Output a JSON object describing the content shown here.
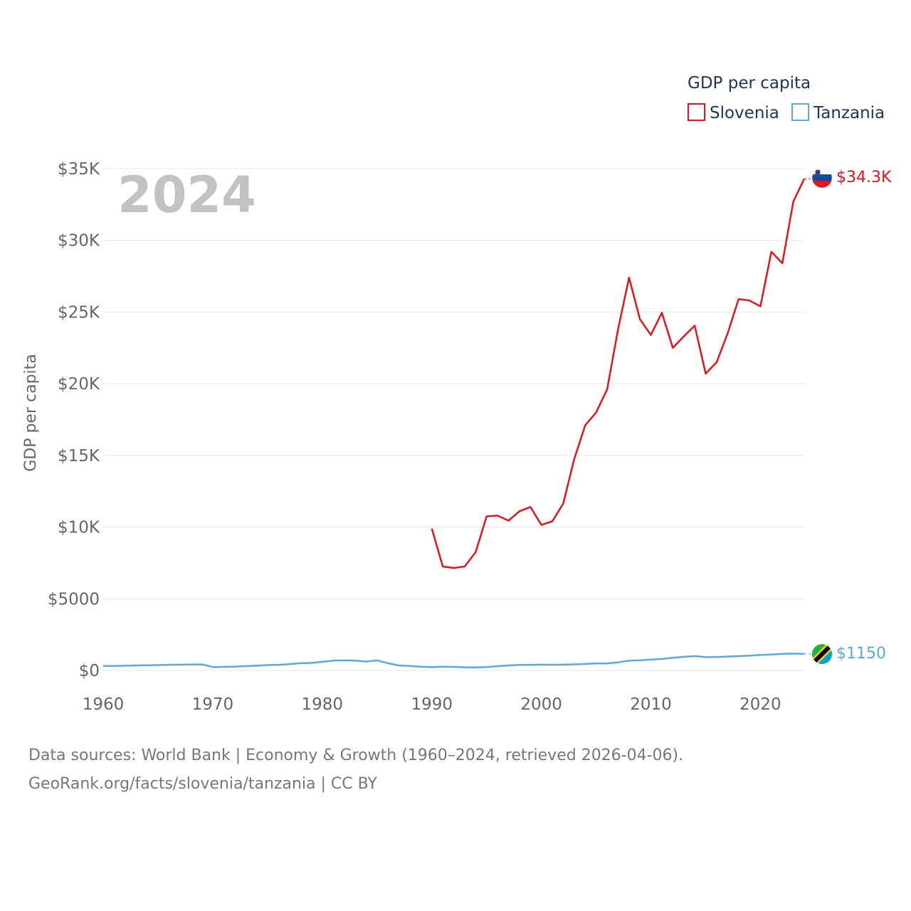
{
  "footer": {
    "line1": "Data sources: World Bank | Economy & Growth (1960–2024, retrieved 2026-04-06).",
    "line2": "GeoRank.org/facts/slovenia/tanzania | CC BY"
  },
  "chart_data": {
    "type": "line",
    "title": "GDP per capita",
    "ylabel": "GDP per capita",
    "xlabel": "",
    "current_year": "2024",
    "xlim": [
      1960,
      2024
    ],
    "ylim": [
      0,
      35000
    ],
    "x_ticks": [
      1960,
      1970,
      1980,
      1990,
      2000,
      2010,
      2020
    ],
    "x_tick_labels": [
      "1960",
      "1970",
      "1980",
      "1990",
      "2000",
      "2010",
      "2020"
    ],
    "y_ticks": [
      0,
      5000,
      10000,
      15000,
      20000,
      25000,
      30000,
      35000
    ],
    "y_tick_labels": [
      "$0",
      "$5000",
      "$10K",
      "$15K",
      "$20K",
      "$25K",
      "$30K",
      "$35K"
    ],
    "grid": true,
    "legend_position": "top-right",
    "series": [
      {
        "name": "Slovenia",
        "color": "#e8141c",
        "end_label": "$34.3K",
        "flag": "slovenia-flag",
        "x": [
          1990,
          1991,
          1992,
          1993,
          1994,
          1995,
          1996,
          1997,
          1998,
          1999,
          2000,
          2001,
          2002,
          2003,
          2004,
          2005,
          2006,
          2007,
          2008,
          2009,
          2010,
          2011,
          2012,
          2013,
          2014,
          2015,
          2016,
          2017,
          2018,
          2019,
          2020,
          2021,
          2022,
          2023,
          2024
        ],
        "values": [
          9900,
          7250,
          7150,
          7250,
          8250,
          10750,
          10800,
          10450,
          11100,
          11400,
          10150,
          10400,
          11650,
          14750,
          17100,
          18000,
          19600,
          23800,
          27400,
          24500,
          23400,
          24950,
          22500,
          23300,
          24050,
          20700,
          21500,
          23500,
          25900,
          25800,
          25400,
          29200,
          28400,
          32700,
          34300
        ]
      },
      {
        "name": "Tanzania",
        "color": "#5aa9e6",
        "end_label": "$1150",
        "flag": "tanzania-flag",
        "x": [
          1960,
          1961,
          1962,
          1963,
          1964,
          1965,
          1966,
          1967,
          1968,
          1969,
          1970,
          1971,
          1972,
          1973,
          1974,
          1975,
          1976,
          1977,
          1978,
          1979,
          1980,
          1981,
          1982,
          1983,
          1984,
          1985,
          1986,
          1987,
          1988,
          1989,
          1990,
          1991,
          1992,
          1993,
          1994,
          1995,
          1996,
          1997,
          1998,
          1999,
          2000,
          2001,
          2002,
          2003,
          2004,
          2005,
          2006,
          2007,
          2008,
          2009,
          2010,
          2011,
          2012,
          2013,
          2014,
          2015,
          2016,
          2017,
          2018,
          2019,
          2020,
          2021,
          2022,
          2023,
          2024
        ],
        "values": [
          310,
          320,
          330,
          350,
          360,
          370,
          390,
          400,
          410,
          420,
          240,
          250,
          270,
          300,
          340,
          370,
          390,
          440,
          500,
          520,
          600,
          680,
          700,
          680,
          620,
          700,
          500,
          350,
          310,
          260,
          230,
          260,
          250,
          220,
          210,
          240,
          300,
          350,
          380,
          390,
          400,
          390,
          400,
          420,
          450,
          490,
          490,
          560,
          680,
          710,
          760,
          800,
          880,
          950,
          1000,
          930,
          940,
          970,
          1000,
          1030,
          1080,
          1110,
          1150,
          1170,
          1150
        ]
      }
    ]
  }
}
